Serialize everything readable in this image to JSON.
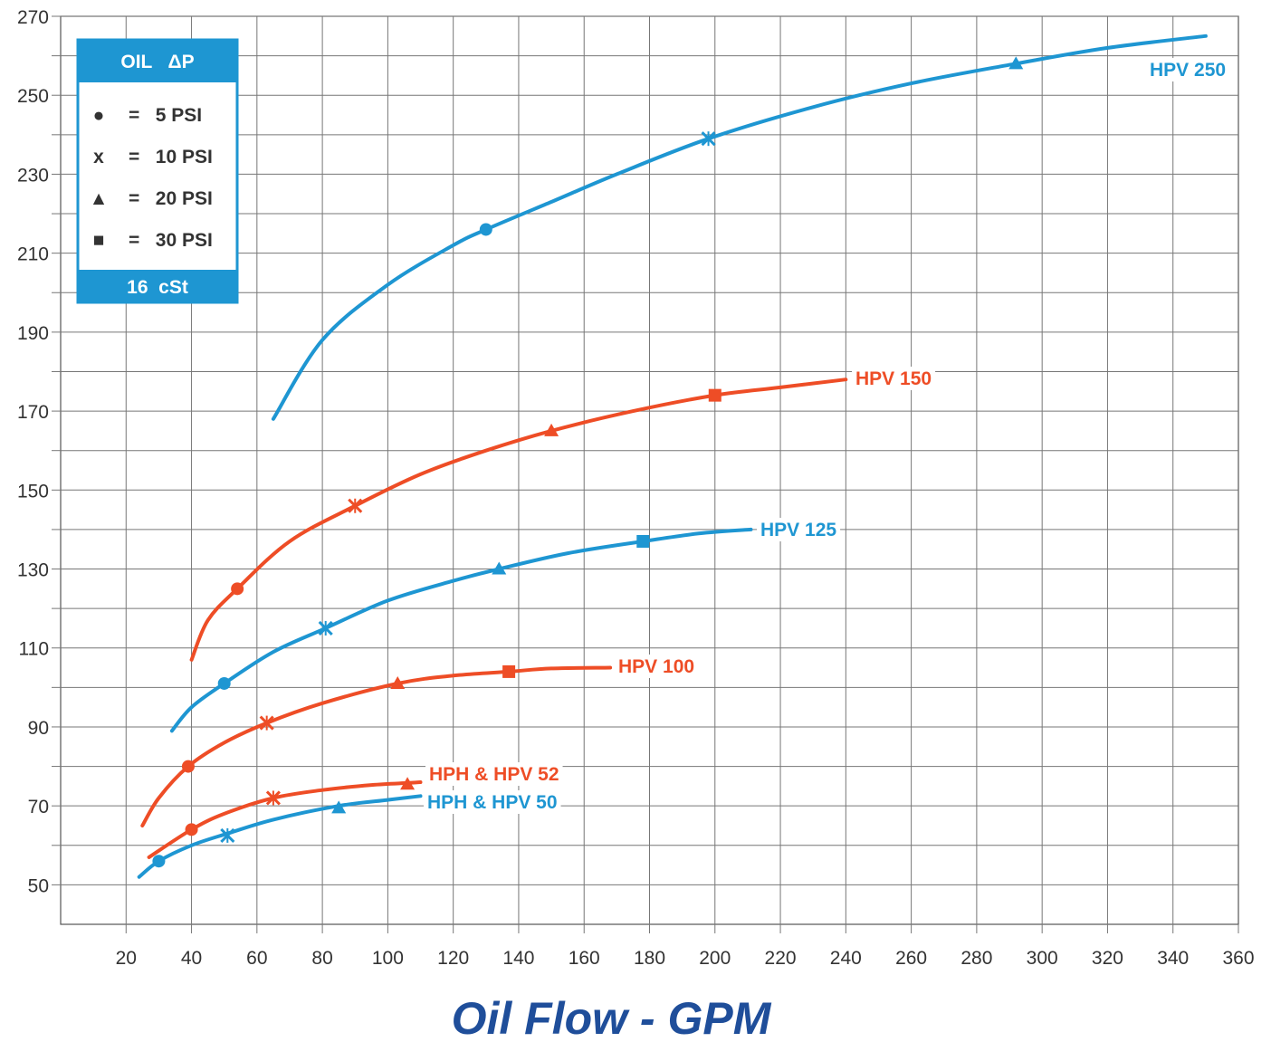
{
  "chart_data": {
    "type": "line",
    "title": "",
    "xlabel": "Oil Flow - GPM",
    "ylabel": "",
    "xlim": [
      0,
      360
    ],
    "ylim": [
      40,
      270
    ],
    "x_ticks": [
      20,
      40,
      60,
      80,
      100,
      120,
      140,
      160,
      180,
      200,
      220,
      240,
      260,
      280,
      300,
      320,
      340,
      360
    ],
    "y_ticks": [
      50,
      70,
      90,
      110,
      130,
      150,
      170,
      190,
      210,
      230,
      250,
      270
    ],
    "grid": true,
    "colors": {
      "blue": "#1e96d2",
      "orange": "#ee4d26",
      "legend_blue": "#1e96d2",
      "xlabel": "#1f4e9a"
    },
    "legend": {
      "placement": "top-left",
      "header": "OIL   ΔP",
      "footer": "16  cSt",
      "entries": [
        {
          "marker": "circle",
          "symbol": "●",
          "text": "=   5 PSI"
        },
        {
          "marker": "x",
          "symbol": "x",
          "text": "=   10 PSI"
        },
        {
          "marker": "triangle",
          "symbol": "▲",
          "text": "=   20 PSI"
        },
        {
          "marker": "square",
          "symbol": "■",
          "text": "=   30 PSI"
        }
      ]
    },
    "series": [
      {
        "name": "HPV 250",
        "color": "#1e96d2",
        "points": [
          [
            65,
            168
          ],
          [
            80,
            188
          ],
          [
            100,
            202
          ],
          [
            120,
            212
          ],
          [
            130,
            216
          ],
          [
            150,
            223
          ],
          [
            170,
            230
          ],
          [
            198,
            239
          ],
          [
            230,
            247
          ],
          [
            260,
            253
          ],
          [
            292,
            258
          ],
          [
            320,
            262
          ],
          [
            350,
            265
          ]
        ],
        "markers": [
          {
            "x": 130,
            "y": 216,
            "marker": "circle"
          },
          {
            "x": 198,
            "y": 239,
            "marker": "x"
          },
          {
            "x": 292,
            "y": 258,
            "marker": "triangle"
          }
        ]
      },
      {
        "name": "HPV 150",
        "color": "#ee4d26",
        "points": [
          [
            40,
            107
          ],
          [
            45,
            117
          ],
          [
            54,
            125
          ],
          [
            70,
            137
          ],
          [
            90,
            146
          ],
          [
            110,
            154
          ],
          [
            130,
            160
          ],
          [
            150,
            165
          ],
          [
            175,
            170
          ],
          [
            200,
            174
          ],
          [
            220,
            176
          ],
          [
            240,
            178
          ]
        ],
        "markers": [
          {
            "x": 54,
            "y": 125,
            "marker": "circle"
          },
          {
            "x": 90,
            "y": 146,
            "marker": "x"
          },
          {
            "x": 150,
            "y": 165,
            "marker": "triangle"
          },
          {
            "x": 200,
            "y": 174,
            "marker": "square"
          }
        ]
      },
      {
        "name": "HPV 125",
        "color": "#1e96d2",
        "points": [
          [
            34,
            89
          ],
          [
            40,
            95
          ],
          [
            50,
            101
          ],
          [
            65,
            109
          ],
          [
            81,
            115
          ],
          [
            100,
            122
          ],
          [
            120,
            127
          ],
          [
            134,
            130
          ],
          [
            155,
            134
          ],
          [
            178,
            137
          ],
          [
            195,
            139
          ],
          [
            211,
            140
          ]
        ],
        "markers": [
          {
            "x": 50,
            "y": 101,
            "marker": "circle"
          },
          {
            "x": 81,
            "y": 115,
            "marker": "x"
          },
          {
            "x": 134,
            "y": 130,
            "marker": "triangle"
          },
          {
            "x": 178,
            "y": 137,
            "marker": "square"
          }
        ]
      },
      {
        "name": "HPV 100",
        "color": "#ee4d26",
        "points": [
          [
            25,
            65
          ],
          [
            30,
            72
          ],
          [
            39,
            80
          ],
          [
            50,
            86
          ],
          [
            63,
            91
          ],
          [
            80,
            96
          ],
          [
            103,
            101
          ],
          [
            120,
            103
          ],
          [
            137,
            104
          ],
          [
            150,
            104.8
          ],
          [
            168,
            105
          ]
        ],
        "markers": [
          {
            "x": 39,
            "y": 80,
            "marker": "circle"
          },
          {
            "x": 63,
            "y": 91,
            "marker": "x"
          },
          {
            "x": 103,
            "y": 101,
            "marker": "triangle"
          },
          {
            "x": 137,
            "y": 104,
            "marker": "square"
          }
        ]
      },
      {
        "name": "HPH & HPV 52",
        "color": "#ee4d26",
        "points": [
          [
            27,
            57
          ],
          [
            40,
            64
          ],
          [
            50,
            68
          ],
          [
            65,
            72
          ],
          [
            80,
            74
          ],
          [
            95,
            75.3
          ],
          [
            106,
            75.8
          ],
          [
            110,
            76
          ]
        ],
        "markers": [
          {
            "x": 40,
            "y": 64,
            "marker": "circle"
          },
          {
            "x": 65,
            "y": 72,
            "marker": "x"
          },
          {
            "x": 106,
            "y": 75.5,
            "marker": "triangle"
          }
        ]
      },
      {
        "name": "HPH & HPV 50",
        "color": "#1e96d2",
        "points": [
          [
            24,
            52
          ],
          [
            30,
            56
          ],
          [
            40,
            60
          ],
          [
            51,
            63
          ],
          [
            65,
            66.5
          ],
          [
            85,
            70
          ],
          [
            100,
            71.5
          ],
          [
            110,
            72.5
          ]
        ],
        "markers": [
          {
            "x": 30,
            "y": 56,
            "marker": "circle"
          },
          {
            "x": 51,
            "y": 62.5,
            "marker": "x"
          },
          {
            "x": 85,
            "y": 69.5,
            "marker": "triangle"
          }
        ]
      }
    ]
  }
}
